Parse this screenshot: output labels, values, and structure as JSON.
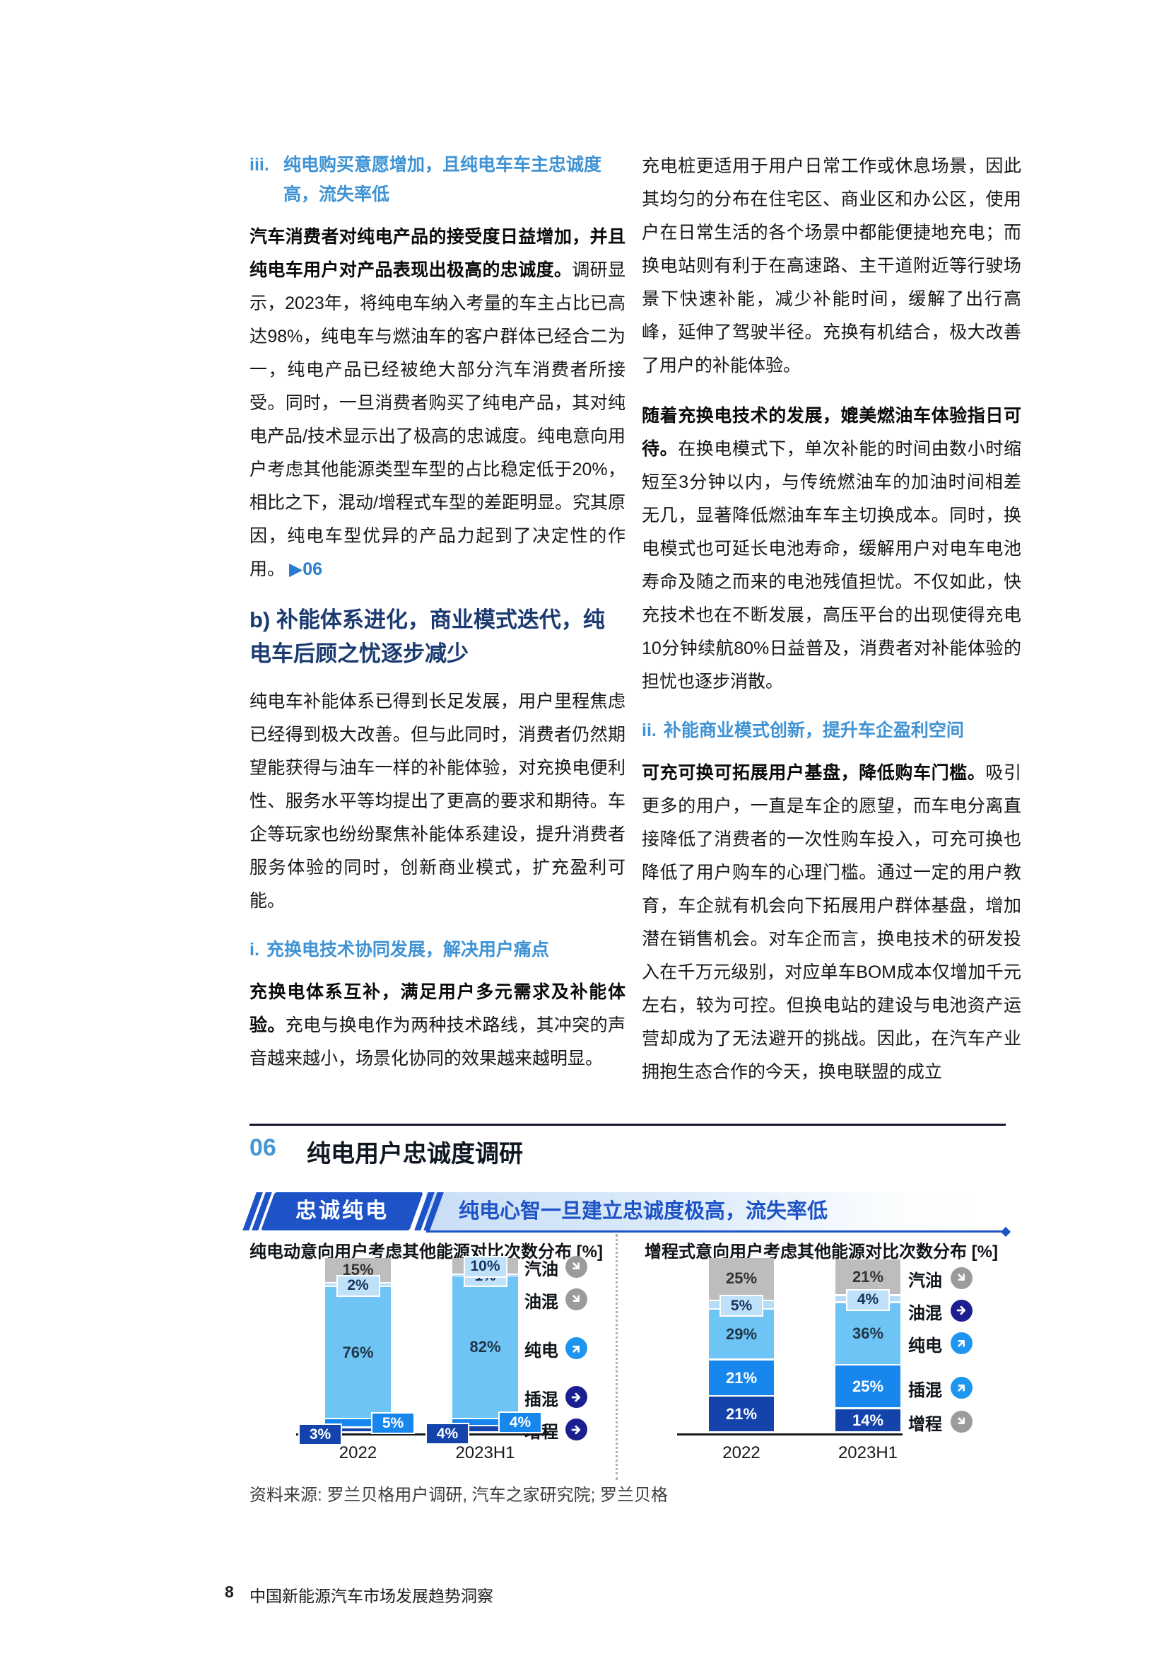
{
  "colors": {
    "accent_blue": "#3f93d4",
    "navy_heading": "#1b3a70",
    "banner_blue": "#1d53c6",
    "bar_gray": "#bdbdbd",
    "bar_pale_blue": "#b5dcf8",
    "bar_sky_blue": "#6ec5f5",
    "bar_mid_blue": "#1787ee",
    "bar_dark_blue": "#1443ab",
    "icon_gray": "#9b9b9b",
    "icon_navy": "#1b1f8f",
    "icon_blue": "#1e96f0"
  },
  "left_column": {
    "heading_iii": {
      "num": "iii.",
      "text": "纯电购买意愿增加，且纯电车车主忠诚度高，流失率低"
    },
    "p1_lead": "汽车消费者对纯电产品的接受度日益增加，并且纯电车用户对产品表现出极高的忠诚度。",
    "p1_rest": "调研显示，2023年，将纯电车纳入考量的车主占比已高达98%，纯电车与燃油车的客户群体已经合二为一，纯电产品已经被绝大部分汽车消费者所接受。同时，一旦消费者购买了纯电产品，其对纯电产品/技术显示出了极高的忠诚度。纯电意向用户考虑其他能源类型车型的占比稳定低于20%，相比之下，混动/增程式车型的差距明显。究其原因，纯电车型优异的产品力起到了决定性的作用。",
    "p1_marker": "▶06",
    "heading_b": "b) 补能体系进化，商业模式迭代，纯电车后顾之忧逐步减少",
    "p2": "纯电车补能体系已得到长足发展，用户里程焦虑已经得到极大改善。但与此同时，消费者仍然期望能获得与油车一样的补能体验，对充换电便利性、服务水平等均提出了更高的要求和期待。车企等玩家也纷纷聚焦补能体系建设，提升消费者服务体验的同时，创新商业模式，扩充盈利可能。",
    "heading_i": {
      "num": "i.",
      "text": "充换电技术协同发展，解决用户痛点"
    },
    "p3_lead": "充换电体系互补，满足用户多元需求及补能体验。",
    "p3_rest": "充电与换电作为两种技术路线，其冲突的声音越来越小，场景化协同的效果越来越明显。"
  },
  "right_column": {
    "p1": "充电桩更适用于用户日常工作或休息场景，因此其均匀的分布在住宅区、商业区和办公区，使用户在日常生活的各个场景中都能便捷地充电；而换电站则有利于在高速路、主干道附近等行驶场景下快速补能，减少补能时间，缓解了出行高峰，延伸了驾驶半径。充换有机结合，极大改善了用户的补能体验。",
    "p2_lead": "随着充换电技术的发展，媲美燃油车体验指日可待。",
    "p2_rest": "在换电模式下，单次补能的时间由数小时缩短至3分钟以内，与传统燃油车的加油时间相差无几，显著降低燃油车车主切换成本。同时，换电模式也可延长电池寿命，缓解用户对电车电池寿命及随之而来的电池残值担忧。不仅如此，快充技术也在不断发展，高压平台的出现使得充电10分钟续航80%日益普及，消费者对补能体验的担忧也逐步消散。",
    "heading_ii": {
      "num": "ii.",
      "text": "补能商业模式创新，提升车企盈利空间"
    },
    "p3_lead": "可充可换可拓展用户基盘，降低购车门槛。",
    "p3_rest": "吸引更多的用户，一直是车企的愿望，而车电分离直接降低了消费者的一次性购车投入，可充可换也降低了用户购车的心理门槛。通过一定的用户教育，车企就有机会向下拓展用户群体基盘，增加潜在销售机会。对车企而言，换电技术的研发投入在千万元级别，对应单车BOM成本仅增加千元左右，较为可控。但换电站的建设与电池资产运营却成为了无法避开的挑战。因此，在汽车产业拥抱生态合作的今天，换电联盟的成立"
  },
  "exhibit": {
    "number": "06",
    "title": "纯电用户忠诚度调研",
    "banner_tag": "忠诚纯电",
    "banner_text": "纯电心智一旦建立忠诚度极高，流失率低",
    "source": "资料来源: 罗兰贝格用户调研, 汽车之家研究院; 罗兰贝格"
  },
  "chart_data": [
    {
      "id": "bev",
      "type": "bar",
      "stacked": true,
      "title": "纯电动意向用户考虑其他能源对比次数分布 [%]",
      "categories": [
        "2022",
        "2023H1"
      ],
      "ylim": [
        0,
        100
      ],
      "unit": "%",
      "legend_position": "right",
      "series": [
        {
          "name": "增程",
          "values": [
            3,
            4
          ],
          "color": "#1443ab",
          "label_style": "chip-left",
          "text": "#ffffff",
          "trend": "flat"
        },
        {
          "name": "插混",
          "values": [
            5,
            4
          ],
          "color": "#1787ee",
          "label_style": "chip-right",
          "text": "#ffffff",
          "trend": "flat"
        },
        {
          "name": "纯电",
          "values": [
            76,
            82
          ],
          "color": "#6ec5f5",
          "label_style": "in",
          "text": "#233449",
          "trend": "up"
        },
        {
          "name": "油混",
          "values": [
            2,
            1
          ],
          "color": "#b5dcf8",
          "label_style": "chip-pale",
          "text": "#17335f",
          "trend": "down"
        },
        {
          "name": "汽油",
          "values": [
            15,
            10
          ],
          "color": "#bdbdbd",
          "label_style": "in",
          "text": "#333333",
          "trend": "down"
        }
      ]
    },
    {
      "id": "erev",
      "type": "bar",
      "stacked": true,
      "title": "增程式意向用户考虑其他能源对比次数分布 [%]",
      "categories": [
        "2022",
        "2023H1"
      ],
      "ylim": [
        0,
        100
      ],
      "unit": "%",
      "legend_position": "right",
      "series": [
        {
          "name": "增程",
          "values": [
            21,
            14
          ],
          "color": "#1443ab",
          "label_style": "in",
          "text": "#ffffff",
          "trend": "down"
        },
        {
          "name": "插混",
          "values": [
            21,
            25
          ],
          "color": "#1787ee",
          "label_style": "in",
          "text": "#ffffff",
          "trend": "up"
        },
        {
          "name": "纯电",
          "values": [
            29,
            36
          ],
          "color": "#6ec5f5",
          "label_style": "in",
          "text": "#233449",
          "trend": "up"
        },
        {
          "name": "油混",
          "values": [
            5,
            4
          ],
          "color": "#b5dcf8",
          "label_style": "chip-pale",
          "text": "#17335f",
          "trend": "flat"
        },
        {
          "name": "汽油",
          "values": [
            25,
            21
          ],
          "color": "#bdbdbd",
          "label_style": "in",
          "text": "#333333",
          "trend": "down"
        }
      ]
    }
  ],
  "footer": {
    "page_number": "8",
    "text": "中国新能源汽车市场发展趋势洞察"
  }
}
